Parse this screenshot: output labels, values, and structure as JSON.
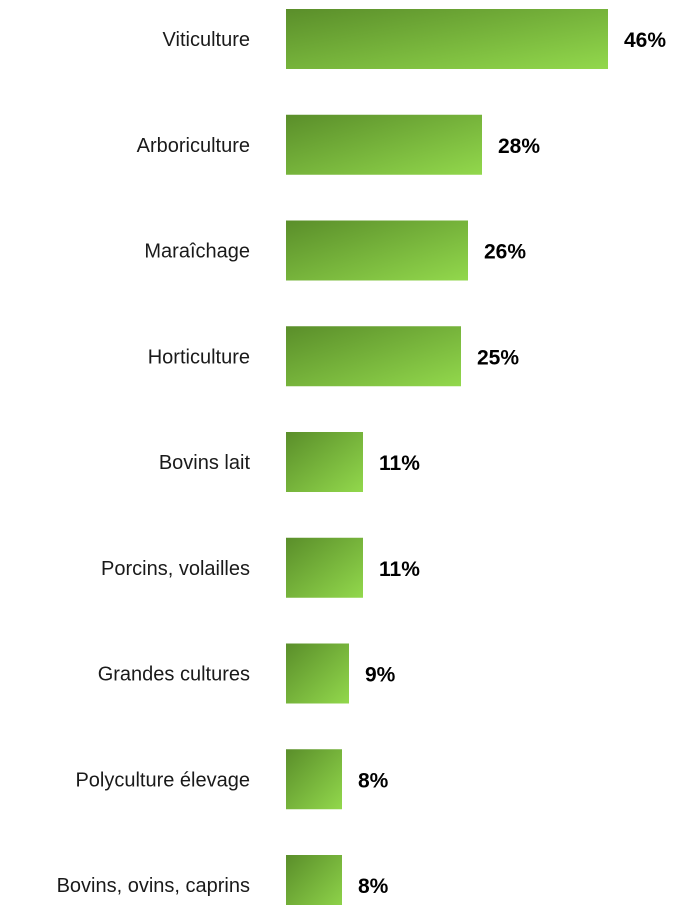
{
  "chart_data": {
    "type": "bar",
    "orientation": "horizontal",
    "categories": [
      "Viticulture",
      "Arboriculture",
      "Maraîchage",
      "Horticulture",
      "Bovins lait",
      "Porcins, volailles",
      "Grandes cultures",
      "Polyculture élevage",
      "Bovins, ovins, caprins"
    ],
    "values": [
      46,
      28,
      26,
      25,
      11,
      11,
      9,
      8,
      8
    ],
    "value_labels": [
      "46%",
      "28%",
      "26%",
      "25%",
      "11%",
      "11%",
      "9%",
      "8%",
      "8%"
    ],
    "unit": "%",
    "xlim": [
      0,
      46
    ],
    "grid": false,
    "legend": "none",
    "colors": {
      "bar_dark": "#5a8e2a",
      "bar_light": "#92d84c"
    }
  }
}
